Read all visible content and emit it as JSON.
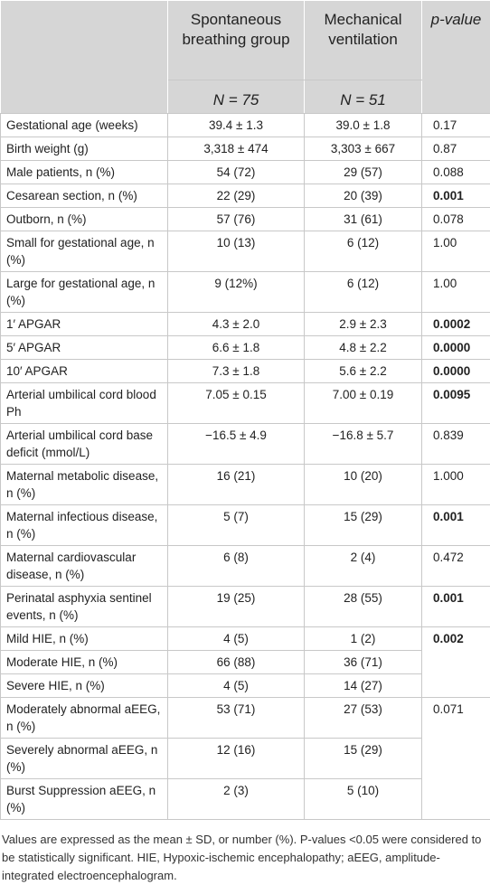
{
  "table": {
    "header": {
      "group1": "Spontaneous breathing group",
      "group1_n": "N = 75",
      "group2": "Mechanical ventilation",
      "group2_n": "N = 51",
      "p": "p-value"
    },
    "rows": [
      {
        "label": "Gestational age (weeks)",
        "sb": "39.4 ± 1.3",
        "mv": "39.0 ± 1.8",
        "p": "0.17"
      },
      {
        "label": "Birth weight (g)",
        "sb": "3,318 ± 474",
        "mv": "3,303 ± 667",
        "p": "0.87"
      },
      {
        "label": "Male patients, n (%)",
        "sb": "54 (72)",
        "mv": "29 (57)",
        "p": "0.088"
      },
      {
        "label": "Cesarean section, n (%)",
        "sb": "22 (29)",
        "mv": "20 (39)",
        "p": "0.001",
        "bold": true
      },
      {
        "label": "Outborn, n (%)",
        "sb": "57 (76)",
        "mv": "31 (61)",
        "p": "0.078"
      },
      {
        "label": "Small for gestational age, n (%)",
        "sb": "10 (13)",
        "mv": "6 (12)",
        "p": "1.00"
      },
      {
        "label": "Large for gestational age, n (%)",
        "sb": "9 (12%)",
        "mv": "6 (12)",
        "p": "1.00"
      },
      {
        "label": "1′ APGAR",
        "sb": "4.3 ± 2.0",
        "mv": "2.9 ± 2.3",
        "p": "0.0002",
        "bold": true
      },
      {
        "label": "5′ APGAR",
        "sb": "6.6 ± 1.8",
        "mv": "4.8 ± 2.2",
        "p": "0.0000",
        "bold": true
      },
      {
        "label": "10′ APGAR",
        "sb": "7.3 ± 1.8",
        "mv": "5.6 ± 2.2",
        "p": "0.0000",
        "bold": true
      },
      {
        "label": "Arterial umbilical cord blood Ph",
        "sb": "7.05 ± 0.15",
        "mv": "7.00 ± 0.19",
        "p": "0.0095",
        "bold": true
      },
      {
        "label": "Arterial umbilical cord base deficit (mmol/L)",
        "sb": "−16.5 ± 4.9",
        "mv": "−16.8 ± 5.7",
        "p": "0.839"
      },
      {
        "label": "Maternal metabolic disease, n (%)",
        "sb": "16 (21)",
        "mv": "10 (20)",
        "p": "1.000"
      },
      {
        "label": "Maternal infectious disease, n (%)",
        "sb": "5 (7)",
        "mv": "15 (29)",
        "p": "0.001",
        "bold": true
      },
      {
        "label": "Maternal cardiovascular disease, n (%)",
        "sb": "6 (8)",
        "mv": "2 (4)",
        "p": "0.472"
      },
      {
        "label": "Perinatal asphyxia sentinel events, n (%)",
        "sb": "19 (25)",
        "mv": "28 (55)",
        "p": "0.001",
        "bold": true
      },
      {
        "label": "Mild HIE, n (%)",
        "sb": "4 (5)",
        "mv": "1 (2)",
        "p": "0.002",
        "bold": true
      },
      {
        "label": "Moderate HIE, n (%)",
        "sb": "66 (88)",
        "mv": "36 (71)"
      },
      {
        "label": "Severe HIE, n (%)",
        "sb": "4 (5)",
        "mv": "14 (27)"
      },
      {
        "label": "Moderately abnormal aEEG, n (%)",
        "sb": "53 (71)",
        "mv": "27 (53)",
        "p": "0.071"
      },
      {
        "label": "Severely abnormal aEEG, n (%)",
        "sb": "12 (16)",
        "mv": "15 (29)"
      },
      {
        "label": "Burst Suppression aEEG, n (%)",
        "sb": "2 (3)",
        "mv": "5 (10)"
      }
    ],
    "footnote": "Values are expressed as the mean ± SD, or number (%). P-values <0.05 were considered to be statistically significant. HIE, Hypoxic-ischemic encephalopathy; aEEG, amplitude-integrated electroencephalogram."
  }
}
